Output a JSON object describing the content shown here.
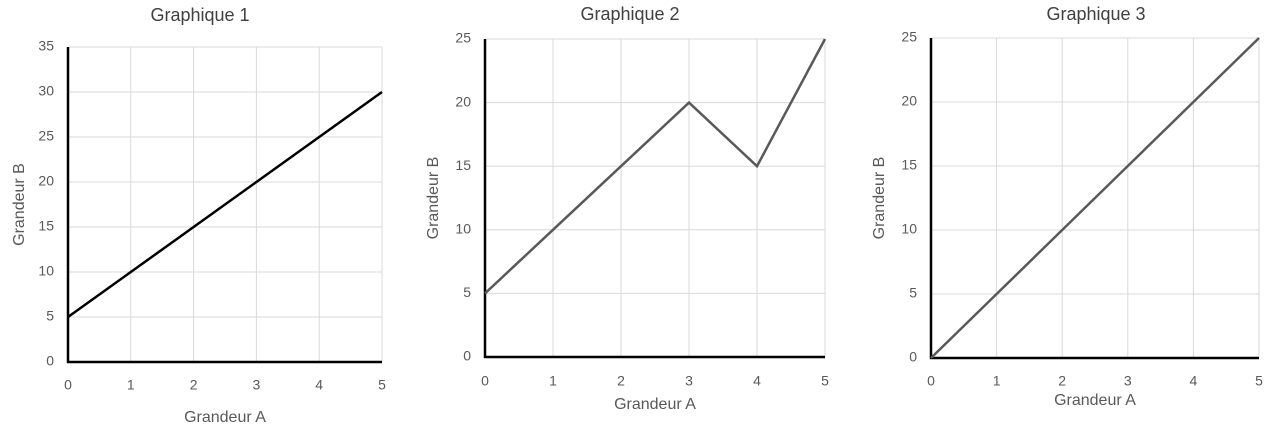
{
  "chart_data": [
    {
      "type": "line",
      "title": "Graphique 1",
      "x_label": "Grandeur A",
      "y_label": "Grandeur B",
      "x": [
        0,
        1,
        2,
        3,
        4,
        5
      ],
      "values": [
        5,
        10,
        15,
        20,
        25,
        30
      ],
      "color": "#000000",
      "xlim": [
        0,
        5
      ],
      "xticks": [
        0,
        1,
        2,
        3,
        4,
        5
      ],
      "ylim": [
        0,
        35
      ],
      "yticks": [
        0,
        5,
        10,
        15,
        20,
        25,
        30,
        35
      ],
      "grid": true
    },
    {
      "type": "line",
      "title": "Graphique 2",
      "x_label": "Grandeur A",
      "y_label": "Grandeur B",
      "x": [
        0,
        1,
        2,
        3,
        4,
        5
      ],
      "values": [
        5,
        10,
        15,
        20,
        15,
        25
      ],
      "color": "#595959",
      "xlim": [
        0,
        5
      ],
      "xticks": [
        0,
        1,
        2,
        3,
        4,
        5
      ],
      "ylim": [
        0,
        25
      ],
      "yticks": [
        0,
        5,
        10,
        15,
        20,
        25
      ],
      "grid": true
    },
    {
      "type": "line",
      "title": "Graphique 3",
      "x_label": "Grandeur A",
      "y_label": "Grandeur B",
      "x": [
        0,
        1,
        2,
        3,
        4,
        5
      ],
      "values": [
        0,
        5,
        10,
        15,
        20,
        25
      ],
      "color": "#595959",
      "xlim": [
        0,
        5
      ],
      "xticks": [
        0,
        1,
        2,
        3,
        4,
        5
      ],
      "ylim": [
        0,
        25
      ],
      "yticks": [
        0,
        5,
        10,
        15,
        20,
        25
      ],
      "grid": true
    }
  ]
}
